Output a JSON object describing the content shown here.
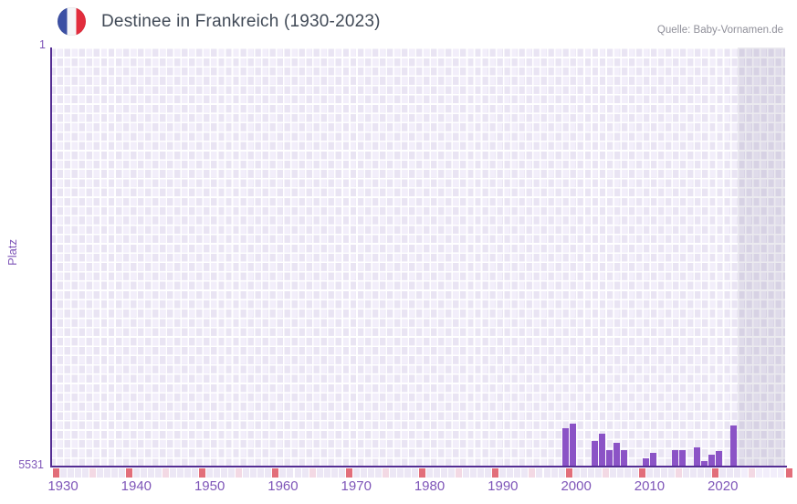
{
  "header": {
    "title": "Destinee in Frankreich (1930-2023)",
    "source": "Quelle: Baby-Vornamen.de"
  },
  "chart_data": {
    "type": "bar",
    "title": "Destinee in Frankreich (1930-2023)",
    "source": "Quelle: Baby-Vornamen.de",
    "ylabel": "Platz",
    "y_axis": {
      "min": 1,
      "max": 5531,
      "inverted": true,
      "top_tick": "1",
      "bottom_tick": "5531"
    },
    "x_axis": {
      "tick_labels": [
        "1930",
        "1940",
        "1950",
        "1960",
        "1970",
        "1980",
        "1990",
        "2000",
        "2010",
        "2020"
      ],
      "range_years": [
        1928.5,
        2028.5
      ]
    },
    "series": [
      {
        "name": "Platz",
        "points": [
          {
            "year": 1998,
            "rank": 5020
          },
          {
            "year": 1999,
            "rank": 4960
          },
          {
            "year": 2002,
            "rank": 5190
          },
          {
            "year": 2003,
            "rank": 5100
          },
          {
            "year": 2004,
            "rank": 5310
          },
          {
            "year": 2005,
            "rank": 5220
          },
          {
            "year": 2006,
            "rank": 5310
          },
          {
            "year": 2009,
            "rank": 5420
          },
          {
            "year": 2010,
            "rank": 5350
          },
          {
            "year": 2013,
            "rank": 5310
          },
          {
            "year": 2014,
            "rank": 5310
          },
          {
            "year": 2016,
            "rank": 5280
          },
          {
            "year": 2017,
            "rank": 5460
          },
          {
            "year": 2018,
            "rank": 5380
          },
          {
            "year": 2019,
            "rank": 5330
          },
          {
            "year": 2021,
            "rank": 4990
          }
        ]
      }
    ],
    "no_data_band": {
      "start_year": 2022
    },
    "decade_markers": {
      "first_red_year": 1929,
      "first_pink_year": 1934,
      "interval": 10
    },
    "colors": {
      "bar": "#8b53c6",
      "axis_line": "#542d93",
      "tick_text": "#7e55b8",
      "grid_cell_dark": "#e9e4f3",
      "grid_cell_light": "#f2eefa",
      "band_tint": "rgba(100,90,135,0.13)",
      "marker_red": "#e26e7a",
      "marker_pink": "#f3d9e4",
      "strip_cell": "#ece7f5",
      "strip_cell_band": "#f2eefb",
      "flag_blue": "#3c50a4",
      "flag_red": "#e22d3d",
      "title_text": "#414a57",
      "source_text": "#8f8f99"
    }
  }
}
